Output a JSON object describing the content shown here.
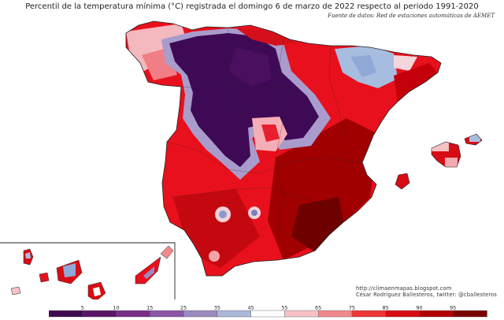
{
  "title": "Percentil de la temperatura mínima (°C) registrada el domingo 6 de marzo de 2022 respecto al periodo 1991-2020",
  "source": "Fuente de datos: Red de estaciones automáticas de AEMET",
  "credits": {
    "url": "http://climaenmapas.blogspot.com",
    "author": "César Rodríguez Ballesteros, twitter: @cballesteros"
  },
  "legend": {
    "tick_labels": [
      "5",
      "10",
      "15",
      "25",
      "35",
      "45",
      "55",
      "65",
      "75",
      "85",
      "90",
      "95"
    ],
    "colors": [
      "#3d0a4f",
      "#5a1666",
      "#7a2d86",
      "#8c56a6",
      "#9b8ac0",
      "#aab9d8",
      "#ffffff",
      "#f6c2c6",
      "#f08a8c",
      "#ee3638",
      "#d80c14",
      "#b20000",
      "#7a0000"
    ]
  },
  "colors": {
    "land_base": "#e8101c",
    "coast": "#222222",
    "background": "#ffffff"
  }
}
